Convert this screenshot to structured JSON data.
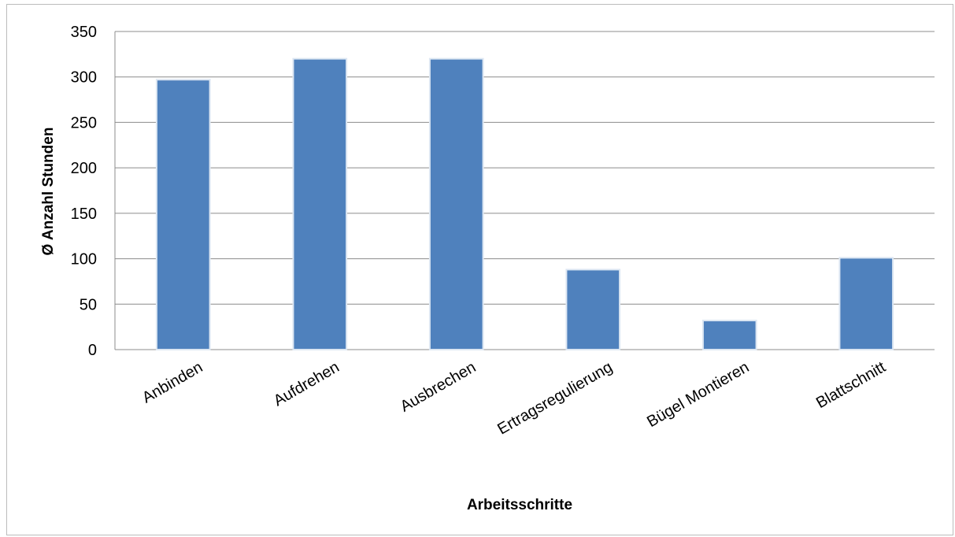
{
  "chart_data": {
    "type": "bar",
    "title": "",
    "xlabel": "Arbeitsschritte",
    "ylabel": "Ø Anzahl Stunden",
    "categories": [
      "Anbinden",
      "Aufdrehen",
      "Ausbrechen",
      "Ertragsregulierung",
      "Bügel Montieren",
      "Blattschnitt"
    ],
    "series": [
      {
        "values": [
          297,
          320,
          320,
          88,
          32,
          101
        ]
      }
    ],
    "ylim": [
      0,
      350
    ],
    "yticks": [
      0,
      50,
      100,
      150,
      200,
      250,
      300,
      350
    ],
    "grid": true,
    "legend": "none",
    "colors": {
      "bar": "#4F81BD",
      "bar_edge": "#DCE6F2",
      "grid": "#8C8C8C"
    }
  }
}
